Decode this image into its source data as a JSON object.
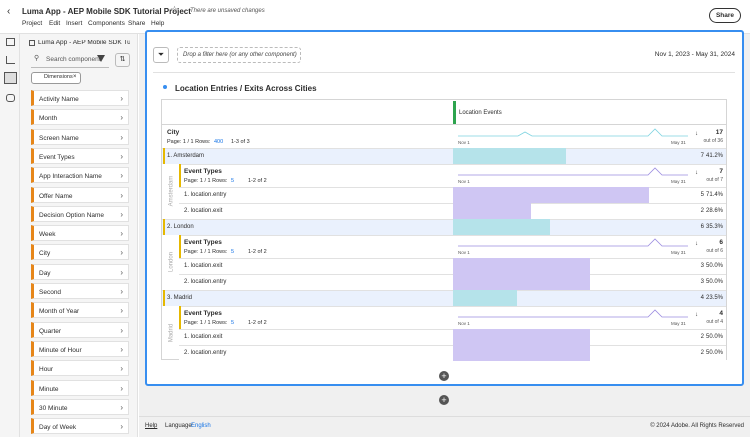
{
  "header": {
    "title": "Luma App - AEP Mobile SDK Tutorial Project",
    "status": "There are unsaved changes",
    "share": "Share",
    "menu": [
      "Project",
      "Edit",
      "Insert",
      "Components",
      "Share",
      "Help"
    ]
  },
  "components": {
    "title": "Luma App - AEP Mobile SDK Tu...",
    "search": "Search component",
    "filter_chip": "Dimensions",
    "items": [
      "Activity Name",
      "Month",
      "Screen Name",
      "Event Types",
      "App Interaction Name",
      "Offer Name",
      "Decision Option Name",
      "Week",
      "City",
      "Day",
      "Second",
      "Month of Year",
      "Quarter",
      "Minute of Hour",
      "Hour",
      "Minute",
      "30 Minute",
      "Day of Week"
    ]
  },
  "panel": {
    "filter_drop": "Drop a filter here (or any other component)",
    "date_range": "Nov 1, 2023 - May 31, 2024",
    "title": "Location Entries / Exits Across Cities",
    "table": {
      "metric": "Location Events",
      "dimension": "City",
      "page": "Page: 1 / 1 Rows:",
      "rows_per_page": 400,
      "range": "1-3 of 3",
      "spark_start": "Nov 1",
      "spark_end": "May 31",
      "total": 17,
      "total_label": "out of 36",
      "rows": [
        {
          "label": "1. Amsterdam",
          "name": "Amsterdam",
          "value": 7,
          "share": 41.2,
          "share_label": "41.2%",
          "breakdown": {
            "dimension": "Event Types",
            "page": "Page: 1 / 1 Rows:",
            "rows_per_page": 5,
            "range": "1-2 of 2",
            "total": 7,
            "total_label": "out of 7",
            "rows": [
              {
                "label": "1. location.entry",
                "value": 5,
                "share": 71.4,
                "share_label": "71.4%"
              },
              {
                "label": "2. location.exit",
                "value": 2,
                "share": 28.6,
                "share_label": "28.6%"
              }
            ]
          }
        },
        {
          "label": "2. London",
          "name": "London",
          "value": 6,
          "share": 35.3,
          "share_label": "35.3%",
          "breakdown": {
            "dimension": "Event Types",
            "page": "Page: 1 / 1 Rows:",
            "rows_per_page": 5,
            "range": "1-2 of 2",
            "total": 6,
            "total_label": "out of 6",
            "rows": [
              {
                "label": "1. location.exit",
                "value": 3,
                "share": 50.0,
                "share_label": "50.0%"
              },
              {
                "label": "2. location.entry",
                "value": 3,
                "share": 50.0,
                "share_label": "50.0%"
              }
            ]
          }
        },
        {
          "label": "3. Madrid",
          "name": "Madrid",
          "value": 4,
          "share": 23.5,
          "share_label": "23.5%",
          "breakdown": {
            "dimension": "Event Types",
            "page": "Page: 1 / 1 Rows:",
            "rows_per_page": 5,
            "range": "1-2 of 2",
            "total": 4,
            "total_label": "out of 4",
            "rows": [
              {
                "label": "1. location.exit",
                "value": 2,
                "share": 50.0,
                "share_label": "50.0%"
              },
              {
                "label": "2. location.entry",
                "value": 2,
                "share": 50.0,
                "share_label": "50.0%"
              }
            ]
          }
        }
      ]
    }
  },
  "footer": {
    "help": "Help",
    "language_label": "Language:",
    "language": "English",
    "copyright": "© 2024 Adobe. All Rights Reserved"
  }
}
